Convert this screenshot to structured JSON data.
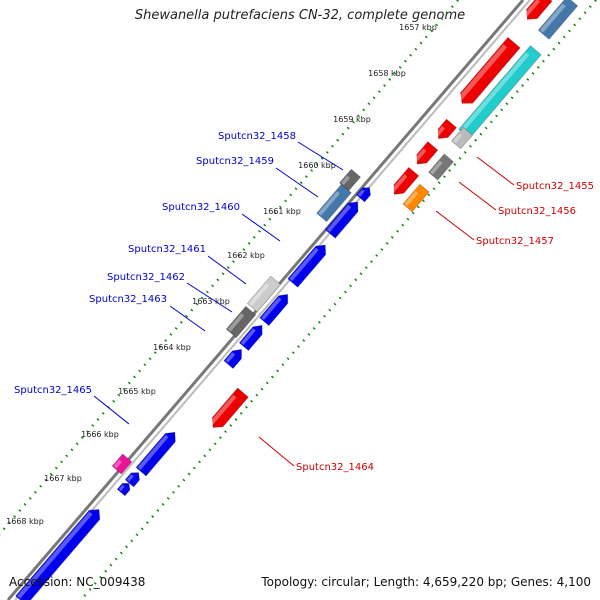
{
  "title": "Shewanella putrefaciens CN-32, complete genome",
  "footer": {
    "accession": "Accession: NC_009438",
    "topology": "Topology: circular; Length: 4,659,220 bp; Genes: 4,100"
  },
  "colors": {
    "forward_genes": "#0000ee",
    "reverse_genes": "#ee0000",
    "forward_label": "#0000cc",
    "reverse_label": "#cc0000",
    "tick_track": "#118811",
    "backbone": "#777777"
  },
  "ticks": [
    "1657 kbp",
    "1658 kbp",
    "1659 kbp",
    "1660 kbp",
    "1661 kbp",
    "1662 kbp",
    "1663 kbp",
    "1664 kbp",
    "1665 kbp",
    "1666 kbp",
    "1667 kbp",
    "1668 kbp"
  ],
  "gene_labels": {
    "forward": [
      "Sputcn32_1458",
      "Sputcn32_1459",
      "Sputcn32_1460",
      "Sputcn32_1461",
      "Sputcn32_1462",
      "Sputcn32_1463",
      "Sputcn32_1465"
    ],
    "reverse": [
      "Sputcn32_1455",
      "Sputcn32_1456",
      "Sputcn32_1457",
      "Sputcn32_1464"
    ]
  }
}
